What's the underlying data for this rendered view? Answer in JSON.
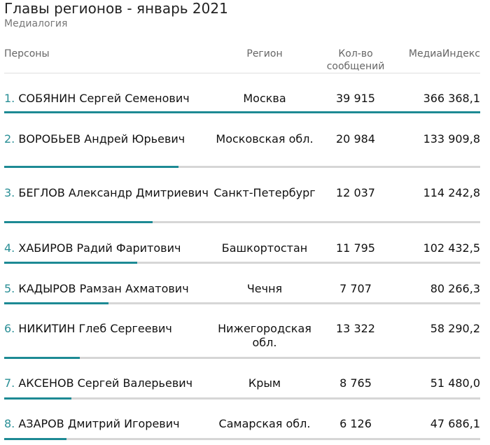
{
  "header": {
    "title": "Главы регионов - январь 2021",
    "subtitle": "Медиалогия"
  },
  "columns": {
    "person": "Персоны",
    "region": "Регион",
    "count_line1": "Кол-во",
    "count_line2": "сообщений",
    "media": "МедиаИндекс"
  },
  "chart_data": {
    "type": "table",
    "title": "Главы регионов - январь 2021",
    "rows": [
      {
        "rank": "1.",
        "person": "СОБЯНИН Сергей Семенович",
        "region": "Москва",
        "count": "39 915",
        "media": "366 368,1",
        "media_value": 366368.1
      },
      {
        "rank": "2.",
        "person": "ВОРОБЬЕВ Андрей Юрьевич",
        "region": "Московская обл.",
        "count": "20 984",
        "media": "133 909,8",
        "media_value": 133909.8
      },
      {
        "rank": "3.",
        "person": "БЕГЛОВ Александр Дмитриевич",
        "region": "Санкт-Петербург",
        "count": "12 037",
        "media": "114 242,8",
        "media_value": 114242.8
      },
      {
        "rank": "4.",
        "person": "ХАБИРОВ Радий Фаритович",
        "region": "Башкортостан",
        "count": "11 795",
        "media": "102 432,5",
        "media_value": 102432.5
      },
      {
        "rank": "5.",
        "person": "КАДЫРОВ Рамзан Ахматович",
        "region": "Чечня",
        "count": "7 707",
        "media": "80 266,3",
        "media_value": 80266.3
      },
      {
        "rank": "6.",
        "person": "НИКИТИН Глеб Сергеевич",
        "region": "Нижегородская обл.",
        "count": "13 322",
        "media": "58 290,2",
        "media_value": 58290.2
      },
      {
        "rank": "7.",
        "person": "АКСЕНОВ Сергей Валерьевич",
        "region": "Крым",
        "count": "8 765",
        "media": "51 480,0",
        "media_value": 51480.0
      },
      {
        "rank": "8.",
        "person": "АЗАРОВ Дмитрий Игоревич",
        "region": "Самарская обл.",
        "count": "6 126",
        "media": "47 686,1",
        "media_value": 47686.1
      }
    ]
  },
  "colors": {
    "accent": "#1d8a94",
    "track": "#d6d6d6"
  }
}
